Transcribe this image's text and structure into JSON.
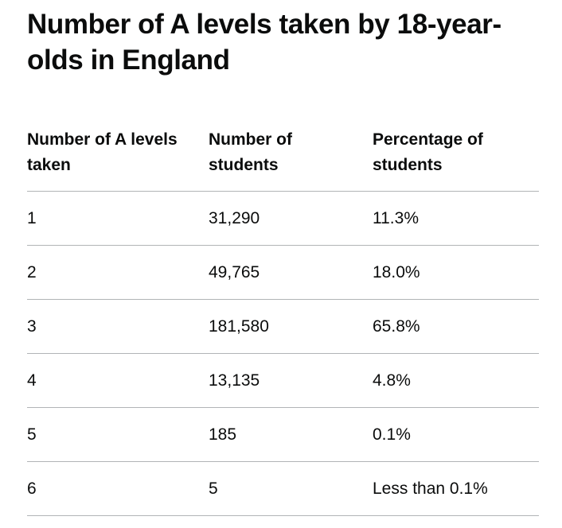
{
  "title": "Number of A levels taken by 18-year-olds in England",
  "table": {
    "headers": [
      "Number of A levels taken",
      "Number of students",
      "Percentage of students"
    ],
    "rows": [
      [
        "1",
        "31,290",
        "11.3%"
      ],
      [
        "2",
        "49,765",
        "18.0%"
      ],
      [
        "3",
        "181,580",
        "65.8%"
      ],
      [
        "4",
        "13,135",
        "4.8%"
      ],
      [
        "5",
        "185",
        "0.1%"
      ],
      [
        "6",
        "5",
        "Less than 0.1%"
      ]
    ]
  },
  "colors": {
    "text": "#0b0c0c",
    "rule": "#b1b4b6",
    "background": "#ffffff"
  }
}
